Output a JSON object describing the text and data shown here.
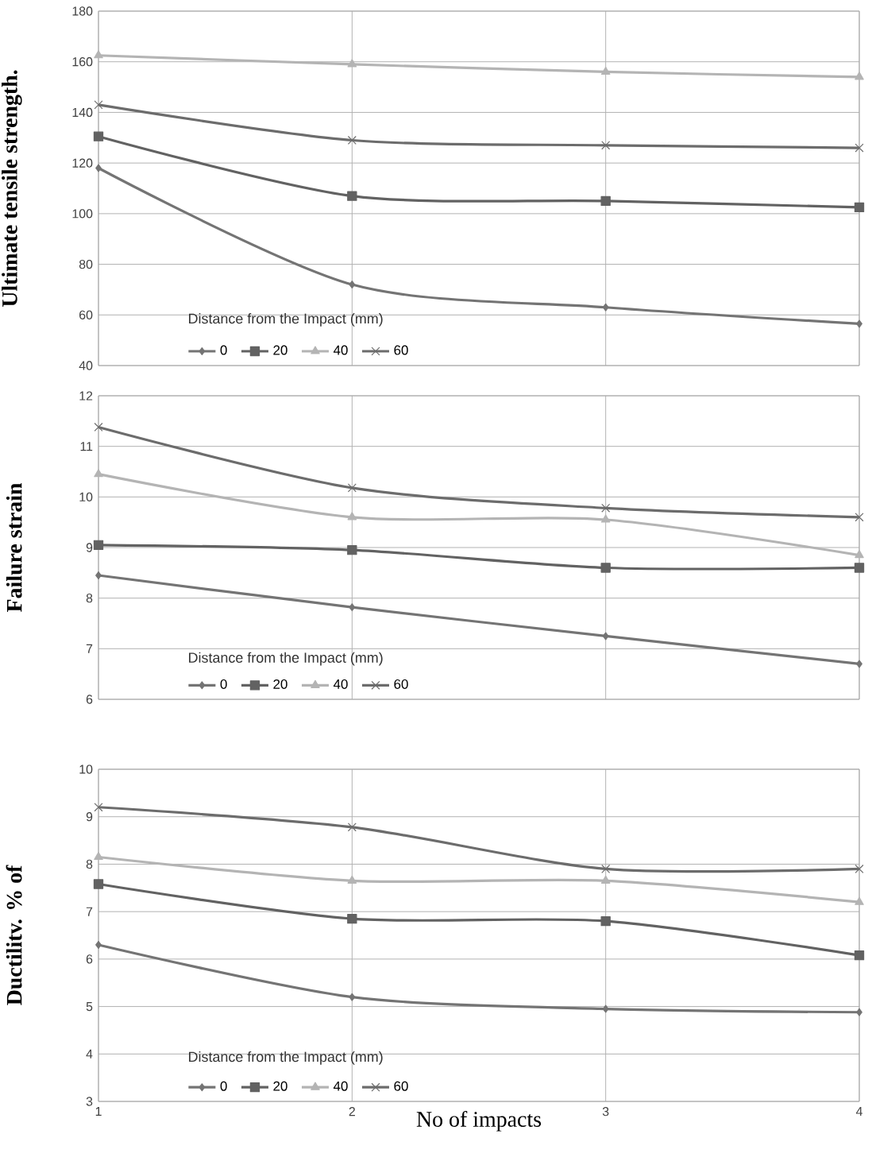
{
  "chart_data": [
    {
      "type": "line",
      "ylabel": "Ultimate tensile strength.",
      "legend_title": "Distance from the Impact (mm)",
      "x": [
        1,
        2,
        3,
        4
      ],
      "xlim": [
        1,
        4
      ],
      "xticks": [
        1,
        2,
        3,
        4
      ],
      "ylim": [
        40,
        180
      ],
      "yticks": [
        40,
        60,
        80,
        100,
        120,
        140,
        160,
        180
      ],
      "grid": true,
      "legend": "bottom left",
      "tick_labels": "y",
      "series": [
        {
          "name": "0",
          "color": "#747474",
          "marker": "diamond",
          "values": [
            118,
            72,
            63,
            56.5
          ]
        },
        {
          "name": "20",
          "color": "#626262",
          "marker": "square",
          "values": [
            130.5,
            107,
            105,
            102.5
          ]
        },
        {
          "name": "40",
          "color": "#b4b4b4",
          "marker": "triangle",
          "values": [
            162.5,
            159,
            156,
            154
          ]
        },
        {
          "name": "60",
          "color": "#6c6c6c",
          "marker": "cross",
          "values": [
            143,
            129,
            127,
            126
          ]
        }
      ]
    },
    {
      "type": "line",
      "ylabel": "Failure strain",
      "legend_title": "Distance from the Impact (mm)",
      "x": [
        1,
        2,
        3,
        4
      ],
      "xlim": [
        1,
        4
      ],
      "xticks": [
        1,
        2,
        3,
        4
      ],
      "ylim": [
        6,
        12
      ],
      "yticks": [
        6,
        7,
        8,
        9,
        10,
        11,
        12
      ],
      "grid": true,
      "legend": "bottom left",
      "tick_labels": "y",
      "series": [
        {
          "name": "0",
          "color": "#747474",
          "marker": "diamond",
          "values": [
            8.45,
            7.82,
            7.25,
            6.7
          ]
        },
        {
          "name": "20",
          "color": "#626262",
          "marker": "square",
          "values": [
            9.05,
            8.95,
            8.6,
            8.6
          ]
        },
        {
          "name": "40",
          "color": "#b4b4b4",
          "marker": "triangle",
          "values": [
            10.45,
            9.6,
            9.55,
            8.85
          ]
        },
        {
          "name": "60",
          "color": "#6c6c6c",
          "marker": "cross",
          "values": [
            11.38,
            10.18,
            9.78,
            9.6
          ]
        }
      ]
    },
    {
      "type": "line",
      "xlabel": "No of impacts",
      "ylabel": "Ductilitv. % of",
      "legend_title": "Distance from the Impact (mm)",
      "x": [
        1,
        2,
        3,
        4
      ],
      "xlim": [
        1,
        4
      ],
      "xticks": [
        1,
        2,
        3,
        4
      ],
      "ylim": [
        3,
        10
      ],
      "yticks": [
        3,
        4,
        5,
        6,
        7,
        8,
        9,
        10
      ],
      "grid": true,
      "legend": "bottom left",
      "series": [
        {
          "name": "0",
          "color": "#747474",
          "marker": "diamond",
          "values": [
            6.3,
            5.2,
            4.95,
            4.88
          ]
        },
        {
          "name": "20",
          "color": "#626262",
          "marker": "square",
          "values": [
            7.58,
            6.85,
            6.8,
            6.08
          ]
        },
        {
          "name": "40",
          "color": "#b4b4b4",
          "marker": "triangle",
          "values": [
            8.15,
            7.65,
            7.65,
            7.2
          ]
        },
        {
          "name": "60",
          "color": "#6c6c6c",
          "marker": "cross",
          "values": [
            9.2,
            8.78,
            7.9,
            7.9
          ]
        }
      ]
    }
  ]
}
